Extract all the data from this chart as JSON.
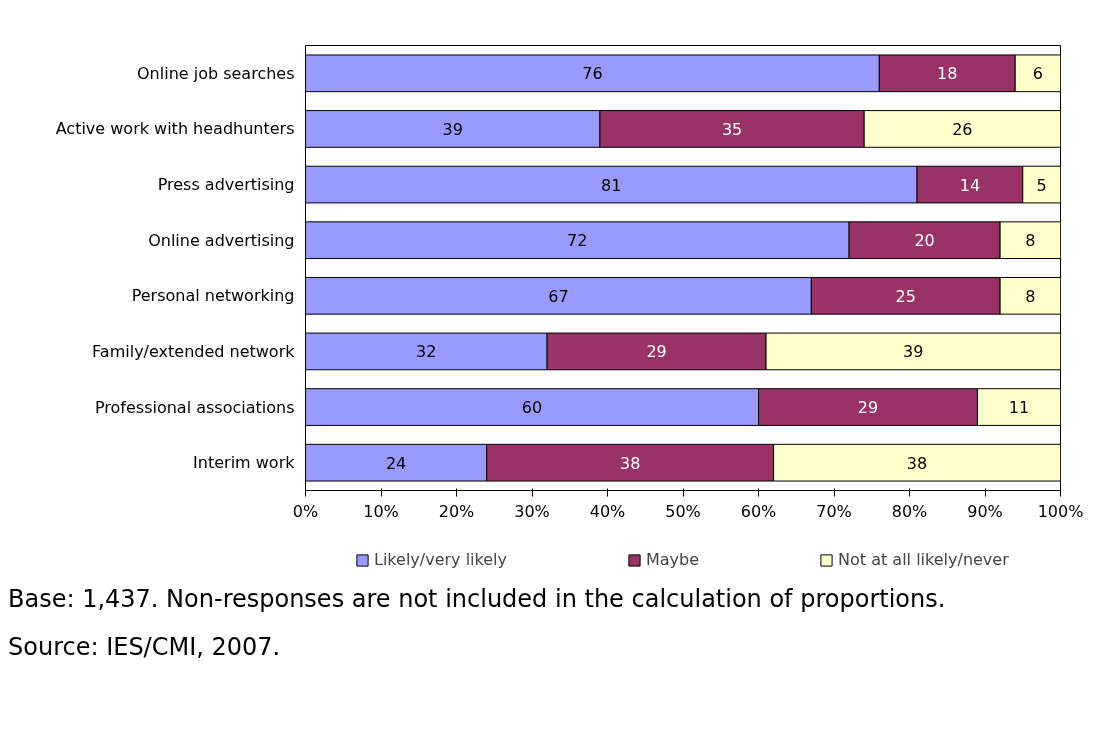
{
  "chart_data": {
    "type": "bar",
    "orientation": "horizontal",
    "stacked": true,
    "data_labels": true,
    "grid": false,
    "legend": "bottom",
    "categories": [
      "Online job searches",
      "Active work with headhunters",
      "Press advertising",
      "Online advertising",
      "Personal networking",
      "Family/extended network",
      "Professional associations",
      "Interim work"
    ],
    "series": [
      {
        "name": "Likely/very likely",
        "color": "#9999ff",
        "values": [
          76,
          39,
          81,
          72,
          67,
          32,
          60,
          24
        ]
      },
      {
        "name": "Maybe",
        "color": "#993366",
        "values": [
          18,
          35,
          14,
          20,
          25,
          29,
          29,
          38
        ]
      },
      {
        "name": "Not at all likely/never",
        "color": "#ffffcc",
        "values": [
          6,
          26,
          5,
          8,
          8,
          39,
          11,
          38
        ]
      }
    ],
    "xlim": [
      0,
      100
    ],
    "xticks": [
      {
        "value": 0,
        "label": "0%"
      },
      {
        "value": 10,
        "label": "10%"
      },
      {
        "value": 20,
        "label": "20%"
      },
      {
        "value": 30,
        "label": "30%"
      },
      {
        "value": 40,
        "label": "40%"
      },
      {
        "value": 50,
        "label": "50%"
      },
      {
        "value": 60,
        "label": "60%"
      },
      {
        "value": 70,
        "label": "70%"
      },
      {
        "value": 80,
        "label": "80%"
      },
      {
        "value": 90,
        "label": "90%"
      },
      {
        "value": 100,
        "label": "100%"
      }
    ],
    "annotations": [
      "Base: 1,437. Non-responses are not included in the calculation of proportions.",
      "Source: IES/CMI, 2007."
    ]
  }
}
